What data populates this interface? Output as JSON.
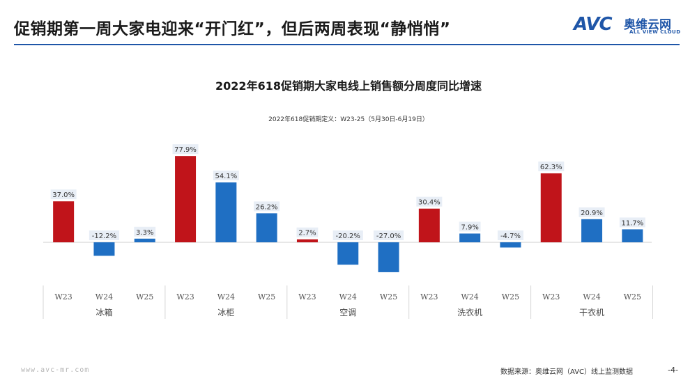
{
  "header": {
    "title": "促销期第一周大家电迎来“开门红”，但后两周表现“静悄悄”",
    "logo_mark": "AVC",
    "logo_cn": "奥维云网",
    "logo_en": "ALL VIEW CLOUD"
  },
  "colors": {
    "brand": "#1f56a8",
    "w23_bar": "#c0141a",
    "other_bar": "#1f6fc3",
    "label_bg": "#e8eef6"
  },
  "chart_data": {
    "type": "bar",
    "title": "2022年618促销期大家电线上销售额分周度同比增速",
    "subtitle": "2022年618促销期定义：W23-25（5月30日-6月19日）",
    "weeks": [
      "W23",
      "W24",
      "W25"
    ],
    "groups": [
      {
        "name": "冰箱",
        "values": [
          37.0,
          -12.2,
          3.3
        ]
      },
      {
        "name": "冰柜",
        "values": [
          77.9,
          54.1,
          26.2
        ]
      },
      {
        "name": "空调",
        "values": [
          2.7,
          -20.2,
          -27.0
        ]
      },
      {
        "name": "洗衣机",
        "values": [
          30.4,
          7.9,
          -4.7
        ]
      },
      {
        "name": "干衣机",
        "values": [
          62.3,
          20.9,
          11.7
        ]
      }
    ],
    "value_labels": [
      [
        "37.0%",
        "-12.2%",
        "3.3%"
      ],
      [
        "77.9%",
        "54.1%",
        "26.2%"
      ],
      [
        "2.7%",
        "-20.2%",
        "-27.0%"
      ],
      [
        "30.4%",
        "7.9%",
        "-4.7%"
      ],
      [
        "62.3%",
        "20.9%",
        "11.7%"
      ]
    ],
    "unit": "%",
    "grid": false,
    "legend": "none"
  },
  "footer": {
    "site": "www.avc-mr.com",
    "source": "数据来源：奥维云网（AVC）线上监测数据",
    "page": "-4-"
  }
}
